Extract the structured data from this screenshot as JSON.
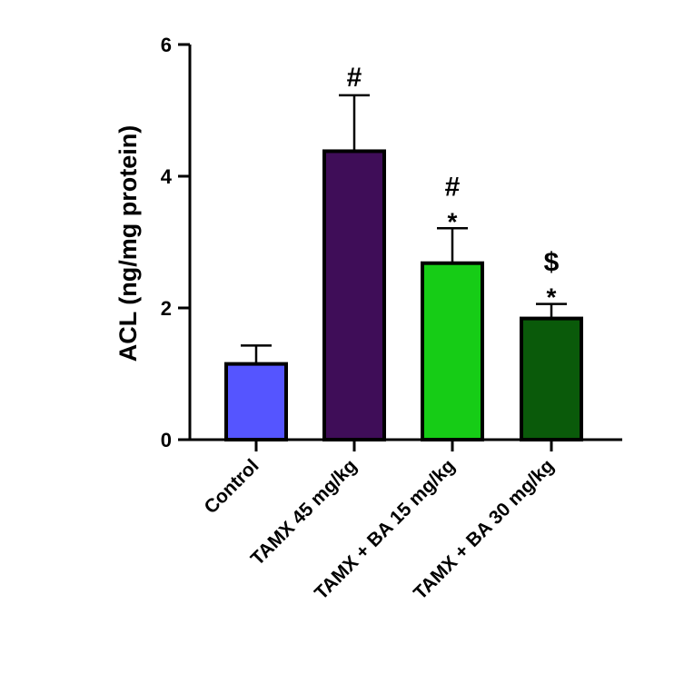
{
  "chart_data": {
    "type": "bar",
    "title": "",
    "xlabel": "",
    "ylabel": "ACL (ng/mg protein)",
    "ylim": [
      0,
      6
    ],
    "yticks": [
      "0",
      "2",
      "4",
      "6"
    ],
    "grid": false,
    "categories": [
      "Control",
      "TAMX 45 mg/kg",
      "TAMX + BA 15 mg/kg",
      "TAMX + BA 30 mg/kg"
    ],
    "values": [
      1.15,
      4.38,
      2.68,
      1.84
    ],
    "errors": [
      0.28,
      0.85,
      0.53,
      0.22
    ],
    "colors": [
      "#5555ff",
      "#3f0d58",
      "#16cc16",
      "#0a5a0a"
    ],
    "annotations": [
      [],
      [
        "#"
      ],
      [
        "*",
        "#"
      ],
      [
        "*",
        "$"
      ]
    ]
  }
}
